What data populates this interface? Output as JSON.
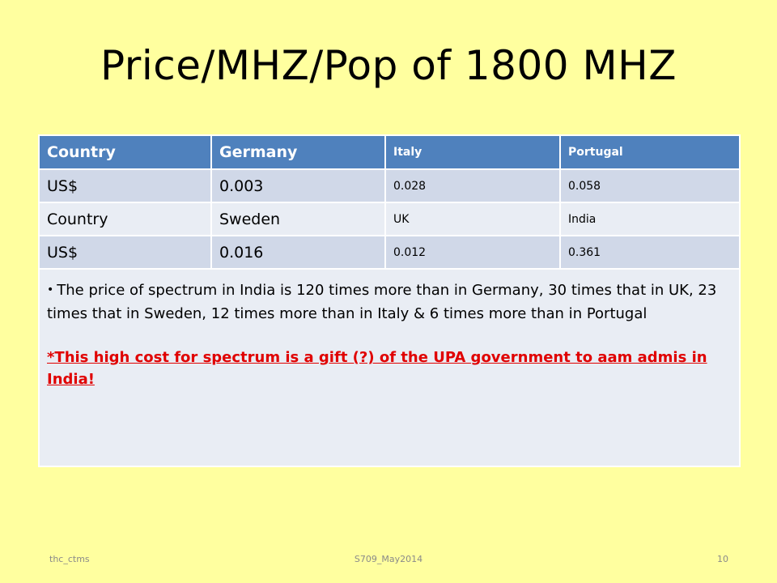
{
  "slide": {
    "title": "Price/MHZ/Pop of 1800 MHZ"
  },
  "table": {
    "header": [
      "Country",
      "Germany",
      "Italy",
      "Portugal"
    ],
    "rows": [
      [
        "US$",
        "0.003",
        "0.028",
        "0.058"
      ],
      [
        "Country",
        "Sweden",
        "UK",
        "India"
      ],
      [
        "US$",
        "0.016",
        "0.012",
        "0.361"
      ]
    ],
    "note": "The price of spectrum in India  is 120 times more than in Germany, 30 times that in UK, 23 times that in Sweden, 12 times more than in Italy & 6 times more than in Portugal",
    "highlight": "*This high cost for spectrum is a gift (?) of the  UPA government to aam admis in India!"
  },
  "footer": {
    "left": "thc_ctms",
    "center": "S709_May2014",
    "page": "10"
  },
  "colors": {
    "background": "#ffff9f",
    "header": "#4f81bd",
    "row_dark": "#d0d8e8",
    "row_light": "#e9edf4",
    "highlight": "#e00000"
  }
}
